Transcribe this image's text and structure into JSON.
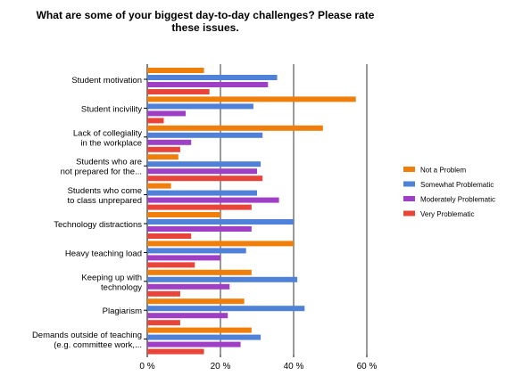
{
  "chart_data": {
    "type": "bar",
    "orientation": "horizontal",
    "title": "What are some of your biggest day-to-day challenges? Please rate these issues.",
    "title_lines": [
      "What are some of your biggest day-to-day challenges? Please rate",
      "these issues."
    ],
    "categories": [
      [
        "Student motivation"
      ],
      [
        "Student incivility"
      ],
      [
        "Lack of collegiality",
        "in the workplace"
      ],
      [
        "Students who are",
        "not prepared for the..."
      ],
      [
        "Students who come",
        "to class unprepared"
      ],
      [
        "Technology distractions"
      ],
      [
        "Heavy teaching load"
      ],
      [
        "Keeping up with",
        "technology"
      ],
      [
        "Plagiarism"
      ],
      [
        "Demands outside of teaching",
        "(e.g. committee work,..."
      ]
    ],
    "series": [
      {
        "name": "Not a Problem",
        "color": "#ef7f0a",
        "values": [
          15.5,
          57,
          48,
          8.5,
          6.5,
          20,
          40,
          28.5,
          26.5,
          28.5
        ]
      },
      {
        "name": "Somewhat Problematic",
        "color": "#4f81d9",
        "values": [
          35.5,
          29,
          31.5,
          31,
          30,
          40,
          27,
          41,
          43,
          31
        ]
      },
      {
        "name": "Moderately Problematic",
        "color": "#9e3fc6",
        "values": [
          33,
          10.5,
          12,
          30,
          36,
          28.5,
          20,
          22.5,
          22,
          25.5
        ]
      },
      {
        "name": "Very Problematic",
        "color": "#e8443a",
        "values": [
          17,
          4.5,
          9,
          31.5,
          28.5,
          12,
          13,
          9,
          9,
          15.5
        ]
      }
    ],
    "xlim": [
      0,
      60
    ],
    "xticks": [
      0,
      20,
      40,
      60
    ],
    "xtick_labels": [
      "0 %",
      "20 %",
      "40 %",
      "60 %"
    ],
    "grid": true,
    "legend_position": "right"
  }
}
